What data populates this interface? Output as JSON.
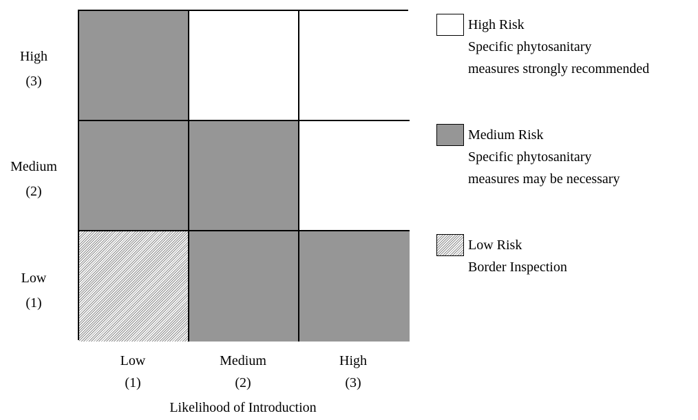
{
  "rows": [
    {
      "label": "High",
      "level": "(3)",
      "cells": [
        "medium",
        "high",
        "high"
      ]
    },
    {
      "label": "Medium",
      "level": "(2)",
      "cells": [
        "medium",
        "medium",
        "high"
      ]
    },
    {
      "label": "Low",
      "level": "(1)",
      "cells": [
        "low",
        "medium",
        "medium"
      ]
    }
  ],
  "columns": [
    {
      "label": "Low",
      "level": "(1)"
    },
    {
      "label": "Medium",
      "level": "(2)"
    },
    {
      "label": "High",
      "level": "(3)"
    }
  ],
  "x_axis_title": "Likelihood of Introduction",
  "legend": [
    {
      "key": "high",
      "title": "High Risk",
      "lines": [
        "Specific phytosanitary",
        "measures strongly recommended"
      ],
      "color": "#ffffff"
    },
    {
      "key": "medium",
      "title": "Medium Risk",
      "lines": [
        "Specific phytosanitary",
        "measures may be necessary"
      ],
      "color": "#969696"
    },
    {
      "key": "low",
      "title": "Low Risk",
      "lines": [
        "Border Inspection"
      ],
      "color": "hatched"
    }
  ],
  "colors": {
    "high": "#ffffff",
    "medium": "#969696",
    "low_hatch": "#8a8a8a",
    "border": "#000000"
  }
}
